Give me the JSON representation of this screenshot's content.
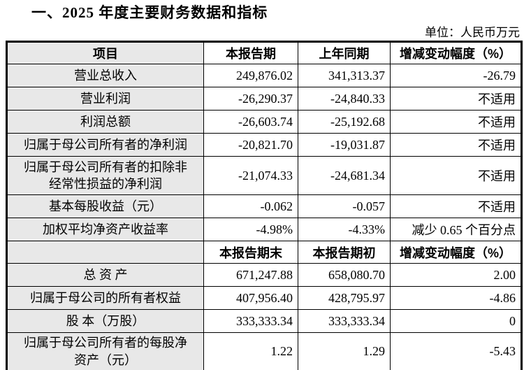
{
  "title": "一、2025 年度主要财务数据和指标",
  "unit_label": "单位：人民币万元",
  "sections": [
    {
      "headers": [
        "项目",
        "本报告期",
        "上年同期",
        "增减变动幅度（%）"
      ],
      "rows": [
        [
          "营业总收入",
          "249,876.02",
          "341,313.37",
          "-26.79"
        ],
        [
          "营业利润",
          "-26,290.37",
          "-24,840.33",
          "不适用"
        ],
        [
          "利润总额",
          "-26,603.74",
          "-25,192.68",
          "不适用"
        ],
        [
          "归属于母公司所有者的净利润",
          "-20,821.70",
          "-19,031.87",
          "不适用"
        ],
        [
          "归属于母公司所有者的扣除非\n经常性损益的净利润",
          "-21,074.33",
          "-24,681.34",
          "不适用"
        ],
        [
          "基本每股收益（元）",
          "-0.062",
          "-0.057",
          "不适用"
        ],
        [
          "加权平均净资产收益率",
          "-4.98%",
          "-4.33%",
          "减少 0.65 个百分点"
        ]
      ]
    },
    {
      "headers": [
        "",
        "本报告期末",
        "本报告期初",
        "增减变动幅度（%）"
      ],
      "rows": [
        [
          "总 资 产",
          "671,247.88",
          "658,080.70",
          "2.00"
        ],
        [
          "归属于母公司的所有者权益",
          "407,956.40",
          "428,795.97",
          "-4.86"
        ],
        [
          "股 本（万股）",
          "333,333.34",
          "333,333.34",
          "0"
        ],
        [
          "归属于母公司所有者的每股净\n资产（元）",
          "1.22",
          "1.29",
          "-5.43"
        ]
      ]
    }
  ]
}
